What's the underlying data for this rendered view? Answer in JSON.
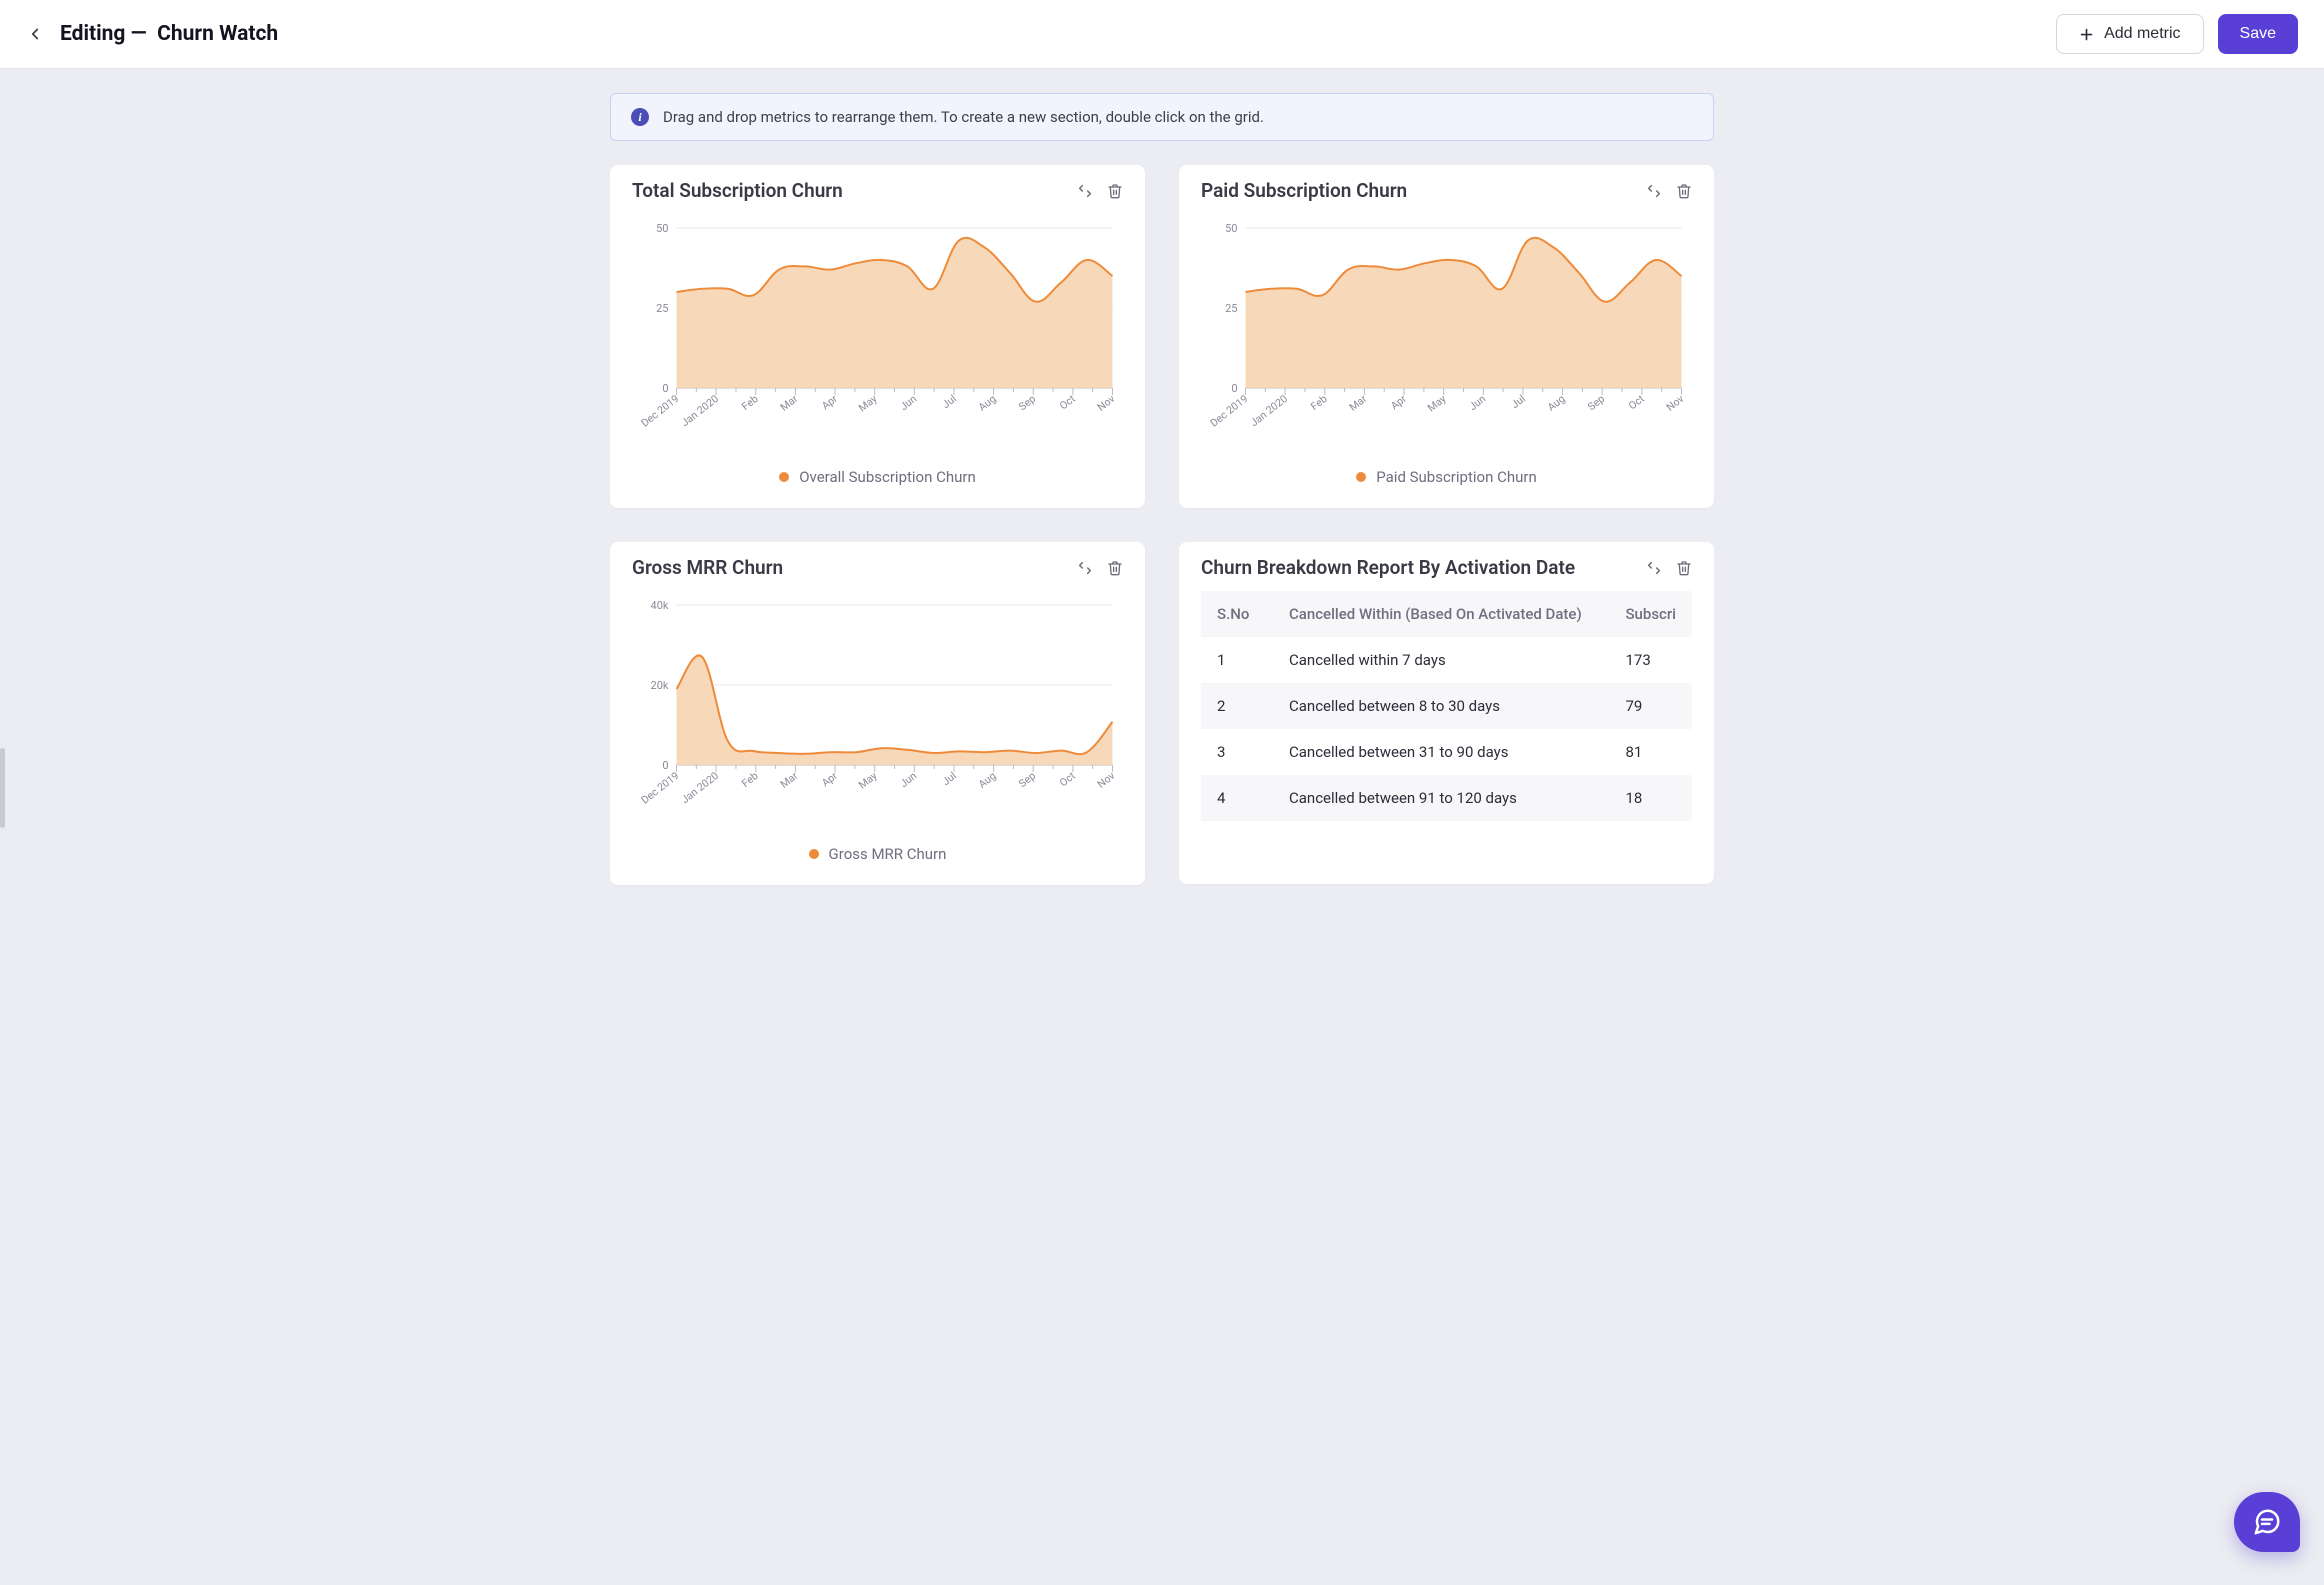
{
  "colors": {
    "primary": "#5a3fd6",
    "series_orange": "#ee8b3a",
    "series_fill": "#f6d2ad",
    "banner_bg": "#f1f3fd",
    "banner_border": "#c9d0f5",
    "banner_text": "#3f3f4b",
    "info_badge_bg": "#4b4fb5",
    "grid_line": "#e7e7ee",
    "axis_tick": "#bcbcc8"
  },
  "header": {
    "editing_label": "Editing",
    "dash": "—",
    "dashboard_name": "Churn Watch",
    "add_metric_label": "Add metric",
    "save_label": "Save"
  },
  "banner": {
    "text": "Drag and drop metrics to rearrange them. To create a new section, double click on the grid."
  },
  "charts": {
    "x_labels": [
      "Dec 2019",
      "Jan 2020",
      "Feb",
      "Mar",
      "Apr",
      "May",
      "Jun",
      "Jul",
      "Aug",
      "Sep",
      "Oct",
      "Nov"
    ],
    "total_sub": {
      "title": "Total Subscription Churn",
      "legend": "Overall Subscription Churn",
      "ylim": [
        0,
        50
      ],
      "yticks": [
        0,
        25,
        50
      ],
      "values": [
        30,
        31,
        31,
        29,
        37,
        38,
        37,
        39,
        40,
        38,
        31,
        46,
        44,
        36,
        27,
        33,
        40,
        35
      ]
    },
    "paid_sub": {
      "title": "Paid Subscription Churn",
      "legend": "Paid Subscription Churn",
      "ylim": [
        0,
        50
      ],
      "yticks": [
        0,
        25,
        50
      ],
      "values": [
        30,
        31,
        31,
        29,
        37,
        38,
        37,
        39,
        40,
        38,
        31,
        46,
        44,
        36,
        27,
        33,
        40,
        35
      ]
    },
    "gross_mrr": {
      "title": "Gross MRR Churn",
      "legend": "Gross MRR Churn",
      "ylim": [
        0,
        40000
      ],
      "yticks": [
        0,
        20000,
        40000
      ],
      "ytick_labels": [
        "0",
        "20k",
        "40k"
      ],
      "values": [
        19000,
        27000,
        6000,
        3500,
        3000,
        2800,
        3200,
        3200,
        4200,
        3800,
        3000,
        3400,
        3200,
        3600,
        3000,
        3600,
        3200,
        10800
      ]
    }
  },
  "table": {
    "title": "Churn Breakdown Report By Activation Date",
    "columns": [
      "S.No",
      "Cancelled Within (Based On Activated Date)",
      "Subscri"
    ],
    "rows": [
      {
        "n": "1",
        "label": "Cancelled within 7 days",
        "val": "173"
      },
      {
        "n": "2",
        "label": "Cancelled between 8 to 30 days",
        "val": "79"
      },
      {
        "n": "3",
        "label": "Cancelled between 31 to 90 days",
        "val": "81"
      },
      {
        "n": "4",
        "label": "Cancelled between 91 to 120 days",
        "val": "18"
      }
    ]
  }
}
